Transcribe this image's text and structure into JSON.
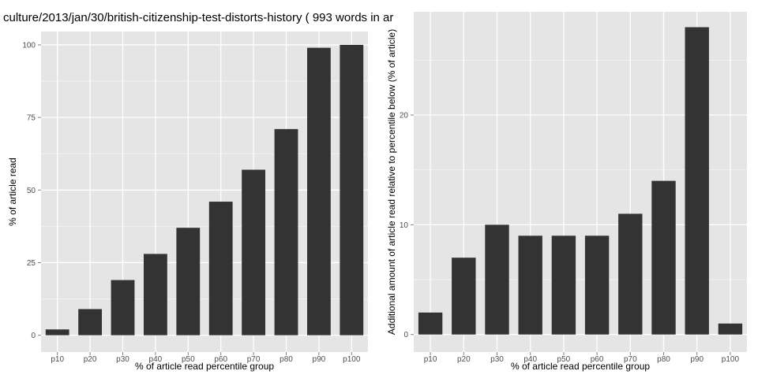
{
  "chart_data": [
    {
      "type": "bar",
      "title": "culture/2013/jan/30/british-citizenship-test-distorts-history ( 993 words in ar",
      "xlabel": "% of article read percentile group",
      "ylabel": "% of article read",
      "categories": [
        "p10",
        "p20",
        "p30",
        "p40",
        "p50",
        "p60",
        "p70",
        "p80",
        "p90",
        "p100"
      ],
      "values": [
        2,
        9,
        19,
        28,
        37,
        46,
        57,
        71,
        99,
        100
      ],
      "yticks": [
        0,
        25,
        50,
        75,
        100
      ],
      "ylim": [
        -5.8,
        104.6
      ],
      "grid": true,
      "colors": {
        "bar": "#333333",
        "panel": "#e5e5e5",
        "grid_major": "#ffffff",
        "grid_minor": "#f2f2f2",
        "tick_label": "#4d4d4d"
      }
    },
    {
      "type": "bar",
      "title": "",
      "xlabel": "% of article read percentile group",
      "ylabel": "Additional amount of article read relative to percentile below (% of article)",
      "categories": [
        "p10",
        "p20",
        "p30",
        "p40",
        "p50",
        "p60",
        "p70",
        "p80",
        "p90",
        "p100"
      ],
      "values": [
        2,
        7,
        10,
        9,
        9,
        9,
        11,
        14,
        28,
        1
      ],
      "yticks": [
        0,
        10,
        20
      ],
      "ylim": [
        -1.6,
        29.4
      ],
      "grid": true,
      "colors": {
        "bar": "#333333",
        "panel": "#e5e5e5",
        "grid_major": "#ffffff",
        "grid_minor": "#f2f2f2",
        "tick_label": "#4d4d4d"
      }
    }
  ]
}
